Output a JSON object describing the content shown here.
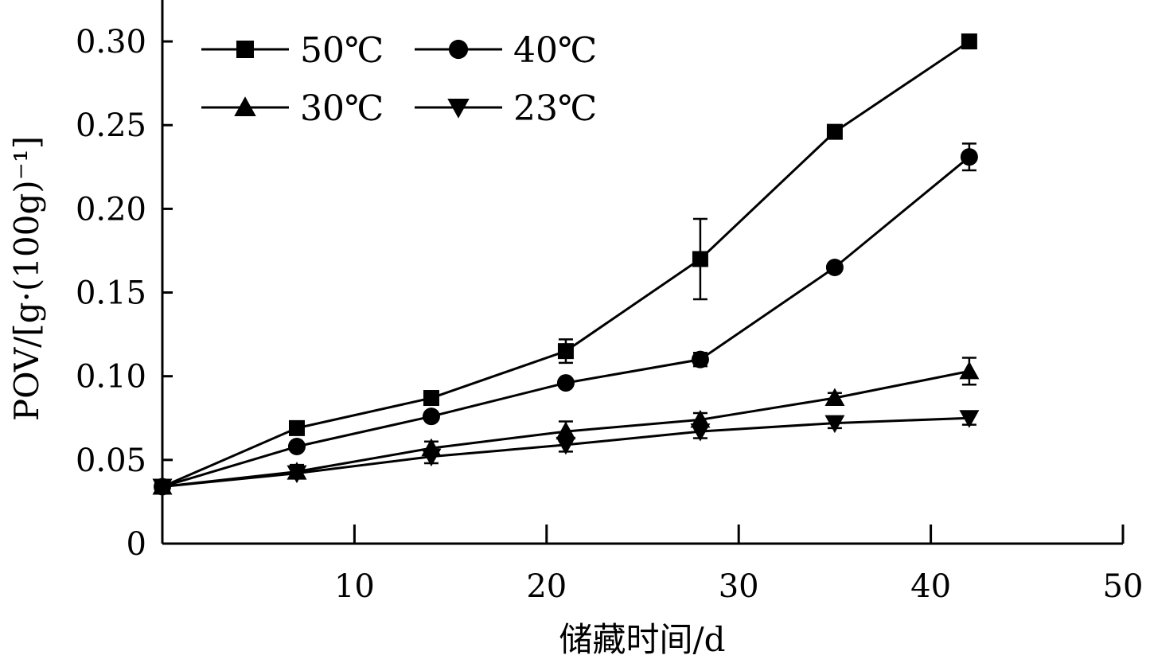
{
  "chart_data": {
    "type": "line",
    "xlabel": "储藏时间/d",
    "ylabel": "POV/[g·(100g)⁻¹]",
    "xlim": [
      0,
      50
    ],
    "ylim": [
      0,
      0.32
    ],
    "x_ticks": [
      10,
      20,
      30,
      40,
      50
    ],
    "x_tick_labels": [
      "10",
      "20",
      "30",
      "40",
      "50"
    ],
    "y_ticks": [
      0,
      0.05,
      0.1,
      0.15,
      0.2,
      0.25,
      0.3
    ],
    "y_tick_labels": [
      "0",
      "0.05",
      "0.10",
      "0.15",
      "0.20",
      "0.25",
      "0.30"
    ],
    "grid": false,
    "legend_position": "top-left",
    "color": "#000000",
    "series": [
      {
        "name": "50℃",
        "marker": "square",
        "x": [
          0,
          7,
          14,
          21,
          28,
          35,
          42
        ],
        "y": [
          0.034,
          0.069,
          0.087,
          0.115,
          0.17,
          0.246,
          0.3
        ],
        "error": [
          0.003,
          0.002,
          0.002,
          0.007,
          0.024,
          0.004,
          0.002
        ]
      },
      {
        "name": "40℃",
        "marker": "circle",
        "x": [
          0,
          7,
          14,
          21,
          28,
          35,
          42
        ],
        "y": [
          0.034,
          0.058,
          0.076,
          0.096,
          0.11,
          0.165,
          0.231
        ],
        "error": [
          0.003,
          0.002,
          0.002,
          0.002,
          0.004,
          0.002,
          0.008
        ]
      },
      {
        "name": "30℃",
        "marker": "triangle-up",
        "x": [
          0,
          7,
          14,
          21,
          28,
          35,
          42
        ],
        "y": [
          0.034,
          0.043,
          0.057,
          0.067,
          0.074,
          0.087,
          0.103
        ],
        "error": [
          0.003,
          0.004,
          0.004,
          0.006,
          0.004,
          0.003,
          0.008
        ]
      },
      {
        "name": "23℃",
        "marker": "triangle-down",
        "x": [
          0,
          7,
          14,
          21,
          28,
          35,
          42
        ],
        "y": [
          0.034,
          0.042,
          0.052,
          0.059,
          0.067,
          0.072,
          0.075
        ],
        "error": [
          0.003,
          0.003,
          0.004,
          0.004,
          0.004,
          0.003,
          0.004
        ]
      }
    ]
  }
}
